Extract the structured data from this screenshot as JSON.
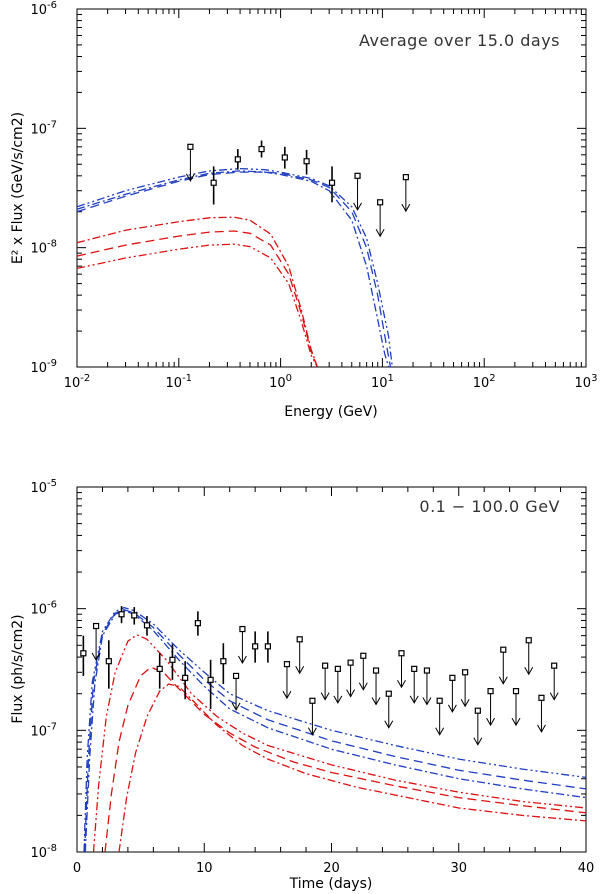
{
  "chart_data": [
    {
      "type": "scatter",
      "annotation": "Average over 15.0 days",
      "xlabel": "Energy (GeV)",
      "ylabel": "E² x Flux (GeV/s/cm2)",
      "xscale": "log",
      "yscale": "log",
      "xlim": [
        0.01,
        1000
      ],
      "ylim": [
        1e-09,
        1e-06
      ],
      "x_tick_values": [
        0.01,
        0.1,
        1,
        10,
        100,
        1000
      ],
      "x_tick_labels": [
        [
          "10",
          "-2"
        ],
        [
          "10",
          "-1"
        ],
        [
          "10",
          "0"
        ],
        [
          "10",
          "1"
        ],
        [
          "10",
          "2"
        ],
        [
          "10",
          "3"
        ]
      ],
      "y_tick_values": [
        1e-09,
        1e-08,
        1e-07,
        1e-06
      ],
      "y_tick_labels": [
        [
          "10",
          "-9"
        ],
        [
          "10",
          "-8"
        ],
        [
          "10",
          "-7"
        ],
        [
          "10",
          "-6"
        ]
      ],
      "points": [
        {
          "x": 0.22,
          "y": 3.5e-08,
          "ylo": 2.3e-08,
          "yhi": 4.8e-08
        },
        {
          "x": 0.38,
          "y": 5.5e-08,
          "ylo": 4.5e-08,
          "yhi": 6.7e-08
        },
        {
          "x": 0.65,
          "y": 6.7e-08,
          "ylo": 5.7e-08,
          "yhi": 7.9e-08
        },
        {
          "x": 1.1,
          "y": 5.7e-08,
          "ylo": 4.6e-08,
          "yhi": 7e-08
        },
        {
          "x": 1.8,
          "y": 5.3e-08,
          "ylo": 4.1e-08,
          "yhi": 6.6e-08
        },
        {
          "x": 3.2,
          "y": 3.5e-08,
          "ylo": 2.4e-08,
          "yhi": 4.8e-08
        }
      ],
      "upper_limits": [
        {
          "x": 0.13,
          "y": 7e-08
        },
        {
          "x": 5.7,
          "y": 4e-08
        },
        {
          "x": 9.5,
          "y": 2.4e-08
        },
        {
          "x": 17,
          "y": 3.9e-08
        }
      ],
      "series": [
        {
          "name": "blue-dash-dot",
          "color": "#1f3fbf",
          "dash": "8,3,2,3",
          "x": [
            0.01,
            0.03,
            0.1,
            0.2,
            0.4,
            0.7,
            1.0,
            2.0,
            3.0,
            5.0,
            7.0,
            9.0,
            10.5,
            11.5
          ],
          "y": [
            2.1e-08,
            2.8e-08,
            3.7e-08,
            4.2e-08,
            4.4e-08,
            4.3e-08,
            4.1e-08,
            3.6e-08,
            3e-08,
            1.7e-08,
            7e-09,
            2.5e-09,
            1.3e-09,
            1e-09
          ]
        },
        {
          "name": "blue-dashed",
          "color": "#1f3fbf",
          "dash": "9,5",
          "x": [
            0.01,
            0.03,
            0.1,
            0.2,
            0.4,
            0.7,
            1.0,
            2.0,
            3.0,
            5.0,
            7.0,
            9.0,
            11.0,
            12.0
          ],
          "y": [
            2e-08,
            2.7e-08,
            3.6e-08,
            4.1e-08,
            4.3e-08,
            4.3e-08,
            4.2e-08,
            3.7e-08,
            3.2e-08,
            2e-08,
            1e-08,
            4e-09,
            1.5e-09,
            1e-09
          ]
        },
        {
          "name": "blue-dash-dot-dot",
          "color": "#1f3fbf",
          "dash": "8,3,2,3,2,3",
          "x": [
            0.01,
            0.03,
            0.1,
            0.2,
            0.4,
            0.7,
            1.0,
            2.0,
            3.0,
            5.0,
            7.0,
            9.0,
            11.5,
            12.5
          ],
          "y": [
            2.2e-08,
            3e-08,
            3.9e-08,
            4.4e-08,
            4.6e-08,
            4.5e-08,
            4.3e-08,
            3.8e-08,
            3.3e-08,
            2.2e-08,
            1.2e-08,
            5e-09,
            1.8e-09,
            1e-09
          ]
        },
        {
          "name": "red-dash-dot",
          "color": "#dd1111",
          "dash": "8,3,2,3",
          "x": [
            0.01,
            0.03,
            0.1,
            0.2,
            0.35,
            0.5,
            0.8,
            1.2,
            1.6,
            2.0,
            2.3
          ],
          "y": [
            1.1e-08,
            1.4e-08,
            1.65e-08,
            1.78e-08,
            1.8e-08,
            1.7e-08,
            1.3e-08,
            7e-09,
            3e-09,
            1.4e-09,
            1e-09
          ]
        },
        {
          "name": "red-dashed",
          "color": "#dd1111",
          "dash": "9,5",
          "x": [
            0.01,
            0.03,
            0.1,
            0.2,
            0.35,
            0.5,
            0.8,
            1.2,
            1.6,
            2.0,
            2.3
          ],
          "y": [
            8.5e-09,
            1.05e-08,
            1.25e-08,
            1.35e-08,
            1.38e-08,
            1.32e-08,
            1.05e-08,
            6e-09,
            2.8e-09,
            1.35e-09,
            1e-09
          ]
        },
        {
          "name": "red-dash-dot-dot",
          "color": "#dd1111",
          "dash": "8,3,2,3,2,3",
          "x": [
            0.01,
            0.03,
            0.1,
            0.2,
            0.35,
            0.5,
            0.8,
            1.2,
            1.6,
            2.0,
            2.3
          ],
          "y": [
            6.7e-09,
            8.2e-09,
            9.7e-09,
            1.05e-08,
            1.07e-08,
            1.02e-08,
            8.2e-09,
            5e-09,
            2.4e-09,
            1.25e-09,
            1e-09
          ]
        }
      ]
    },
    {
      "type": "scatter",
      "annotation": "0.1 − 100.0 GeV",
      "xlabel": "Time (days)",
      "ylabel": "Flux (ph/s/cm2)",
      "xscale": "linear",
      "yscale": "log",
      "xlim": [
        0,
        40
      ],
      "ylim": [
        1e-08,
        1e-05
      ],
      "x_tick_values": [
        0,
        10,
        20,
        30,
        40
      ],
      "x_tick_labels": [
        "0",
        "10",
        "20",
        "30",
        "40"
      ],
      "y_tick_values": [
        1e-08,
        1e-07,
        1e-06,
        1e-05
      ],
      "y_tick_labels": [
        [
          "10",
          "-8"
        ],
        [
          "10",
          "-7"
        ],
        [
          "10",
          "-6"
        ],
        [
          "10",
          "-5"
        ]
      ],
      "points": [
        {
          "x": 0.5,
          "y": 4.3e-07,
          "ylo": 2.8e-07,
          "yhi": 6e-07
        },
        {
          "x": 2.5,
          "y": 3.7e-07,
          "ylo": 2.2e-07,
          "yhi": 5.5e-07
        },
        {
          "x": 3.5,
          "y": 9e-07,
          "ylo": 7.6e-07,
          "yhi": 1.05e-06
        },
        {
          "x": 4.5,
          "y": 8.8e-07,
          "ylo": 7.4e-07,
          "yhi": 1.03e-06
        },
        {
          "x": 5.5,
          "y": 7.3e-07,
          "ylo": 6e-07,
          "yhi": 8.7e-07
        },
        {
          "x": 6.5,
          "y": 3.2e-07,
          "ylo": 2.2e-07,
          "yhi": 4.3e-07
        },
        {
          "x": 7.5,
          "y": 3.8e-07,
          "ylo": 2.6e-07,
          "yhi": 5.1e-07
        },
        {
          "x": 8.5,
          "y": 2.7e-07,
          "ylo": 1.8e-07,
          "yhi": 3.7e-07
        },
        {
          "x": 9.5,
          "y": 7.6e-07,
          "ylo": 6e-07,
          "yhi": 9.5e-07
        },
        {
          "x": 10.5,
          "y": 2.6e-07,
          "ylo": 1.5e-07,
          "yhi": 3.8e-07
        },
        {
          "x": 11.5,
          "y": 3.7e-07,
          "ylo": 2.4e-07,
          "yhi": 5.2e-07
        },
        {
          "x": 14.0,
          "y": 4.9e-07,
          "ylo": 3.6e-07,
          "yhi": 6.5e-07
        },
        {
          "x": 15.0,
          "y": 4.9e-07,
          "ylo": 3.6e-07,
          "yhi": 6.5e-07
        }
      ],
      "upper_limits": [
        {
          "x": 1.5,
          "y": 7.2e-07
        },
        {
          "x": 12.5,
          "y": 2.8e-07
        },
        {
          "x": 13.0,
          "y": 6.8e-07
        },
        {
          "x": 16.5,
          "y": 3.5e-07
        },
        {
          "x": 17.5,
          "y": 5.6e-07
        },
        {
          "x": 18.5,
          "y": 1.75e-07
        },
        {
          "x": 19.5,
          "y": 3.4e-07
        },
        {
          "x": 20.5,
          "y": 3.2e-07
        },
        {
          "x": 21.5,
          "y": 3.6e-07
        },
        {
          "x": 22.5,
          "y": 4.1e-07
        },
        {
          "x": 23.5,
          "y": 3.1e-07
        },
        {
          "x": 24.5,
          "y": 2e-07
        },
        {
          "x": 25.5,
          "y": 4.3e-07
        },
        {
          "x": 26.5,
          "y": 3.2e-07
        },
        {
          "x": 27.5,
          "y": 3.1e-07
        },
        {
          "x": 28.5,
          "y": 1.75e-07
        },
        {
          "x": 29.5,
          "y": 2.7e-07
        },
        {
          "x": 30.5,
          "y": 3e-07
        },
        {
          "x": 31.5,
          "y": 1.45e-07
        },
        {
          "x": 32.5,
          "y": 2.1e-07
        },
        {
          "x": 33.5,
          "y": 4.6e-07
        },
        {
          "x": 34.5,
          "y": 2.1e-07
        },
        {
          "x": 35.5,
          "y": 5.5e-07
        },
        {
          "x": 36.5,
          "y": 1.85e-07
        },
        {
          "x": 37.5,
          "y": 3.4e-07
        }
      ],
      "series": [
        {
          "name": "blue-dash-dot-dot",
          "color": "#1f3fbf",
          "dash": "8,3,2,3,2,3",
          "x": [
            0.55,
            0.8,
            1.2,
            2.0,
            3.0,
            3.7,
            4.5,
            6,
            8,
            10,
            12,
            15,
            20,
            25,
            30,
            35,
            40
          ],
          "y": [
            1e-08,
            6e-08,
            2.5e-07,
            6.5e-07,
            9.5e-07,
            1.02e-06,
            9.6e-07,
            7.5e-07,
            4.6e-07,
            3e-07,
            2e-07,
            1.45e-07,
            1e-07,
            7.5e-08,
            5.8e-08,
            4.8e-08,
            4.1e-08
          ]
        },
        {
          "name": "blue-dashed",
          "color": "#1f3fbf",
          "dash": "9,5",
          "x": [
            0.6,
            0.9,
            1.3,
            2.0,
            3.0,
            3.7,
            4.5,
            6,
            8,
            10,
            12,
            15,
            20,
            25,
            30,
            35,
            40
          ],
          "y": [
            1e-08,
            6e-08,
            2.5e-07,
            6.2e-07,
            9.2e-07,
            9.8e-07,
            9.2e-07,
            7e-07,
            4.2e-07,
            2.6e-07,
            1.75e-07,
            1.22e-07,
            8.2e-08,
            6.1e-08,
            4.7e-08,
            3.9e-08,
            3.3e-08
          ]
        },
        {
          "name": "blue-dash-dot",
          "color": "#1f3fbf",
          "dash": "8,3,2,3",
          "x": [
            0.65,
            1.0,
            1.4,
            2.0,
            3.0,
            3.7,
            4.5,
            6,
            8,
            10,
            12,
            15,
            20,
            25,
            30,
            35,
            40
          ],
          "y": [
            1e-08,
            6e-08,
            2.4e-07,
            6e-07,
            9e-07,
            9.6e-07,
            9e-07,
            6.6e-07,
            3.8e-07,
            2.3e-07,
            1.5e-07,
            1.05e-07,
            7e-08,
            5.2e-08,
            4e-08,
            3.3e-08,
            2.8e-08
          ]
        },
        {
          "name": "red-dash-dot-dot",
          "color": "#dd1111",
          "dash": "8,3,2,3,2,3",
          "x": [
            1.3,
            1.7,
            2.3,
            3.0,
            4.0,
            4.7,
            5.5,
            7,
            9,
            11,
            13,
            15,
            20,
            25,
            30,
            35,
            40
          ],
          "y": [
            1e-08,
            3.5e-08,
            1.3e-07,
            3e-07,
            5.4e-07,
            6.1e-07,
            5.6e-07,
            3.8e-07,
            2e-07,
            1.3e-07,
            9.5e-08,
            7.5e-08,
            5.2e-08,
            3.9e-08,
            3.1e-08,
            2.6e-08,
            2.3e-08
          ]
        },
        {
          "name": "red-dashed",
          "color": "#dd1111",
          "dash": "9,5",
          "x": [
            2.2,
            2.7,
            3.3,
            4.0,
            5.0,
            5.8,
            6.8,
            8,
            10,
            12,
            14,
            17,
            20,
            25,
            30,
            35,
            40
          ],
          "y": [
            1e-08,
            3e-08,
            8e-08,
            1.6e-07,
            2.8e-07,
            3.3e-07,
            3e-07,
            2.2e-07,
            1.35e-07,
            9.5e-08,
            7.3e-08,
            5.5e-08,
            4.5e-08,
            3.5e-08,
            2.8e-08,
            2.4e-08,
            2.1e-08
          ]
        },
        {
          "name": "red-dash-dot",
          "color": "#dd1111",
          "dash": "8,3,2,3",
          "x": [
            3.3,
            3.9,
            4.6,
            5.5,
            6.5,
            7.2,
            8.0,
            9,
            11,
            13,
            15,
            18,
            22,
            26,
            30,
            35,
            40
          ],
          "y": [
            1e-08,
            2.8e-08,
            6.5e-08,
            1.3e-07,
            2.1e-07,
            2.4e-07,
            2.3e-07,
            1.8e-07,
            1.1e-07,
            7.5e-08,
            5.8e-08,
            4.4e-08,
            3.4e-08,
            2.8e-08,
            2.3e-08,
            2e-08,
            1.8e-08
          ]
        }
      ]
    }
  ]
}
